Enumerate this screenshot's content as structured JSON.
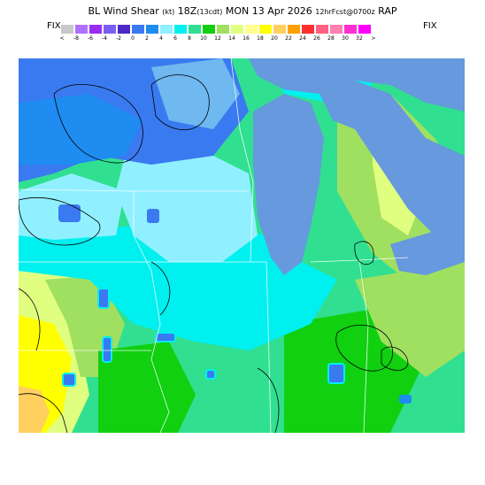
{
  "header": {
    "title": "BL Wind Shear",
    "units": "(kt)",
    "valid_hour": "18Z",
    "valid_local": "(13cdt)",
    "date": "MON 13 Apr 2026",
    "forecast": "12hrFcst@0700z",
    "model": "RAP"
  },
  "colorbar": {
    "fix_left": "FIX",
    "fix_right": "FIX",
    "colors": [
      "#c8c8c8",
      "#b070ff",
      "#9a2cf0",
      "#7a60f0",
      "#4c28c8",
      "#3a7af0",
      "#1e8cf0",
      "#90f0ff",
      "#00f0f0",
      "#30e090",
      "#10d010",
      "#a0e060",
      "#e0ff80",
      "#ffff90",
      "#ffff00",
      "#ffd060",
      "#ffa000",
      "#ff3030",
      "#ff6080",
      "#ff80b0",
      "#ff30d0",
      "#ff00ff"
    ],
    "ticks": [
      "<",
      "-8",
      "-6",
      "-4",
      "-2",
      "0",
      "2",
      "4",
      "6",
      "8",
      "10",
      "12",
      "14",
      "16",
      "18",
      "20",
      "22",
      "24",
      "26",
      "28",
      "30",
      "32",
      ">"
    ]
  },
  "map": {
    "region": "Great Lakes / Upper Midwest",
    "field": "boundary layer wind shear",
    "water_color": "#6699dd",
    "state_lines_color": "#ffffff",
    "contour_color": "#000000"
  }
}
